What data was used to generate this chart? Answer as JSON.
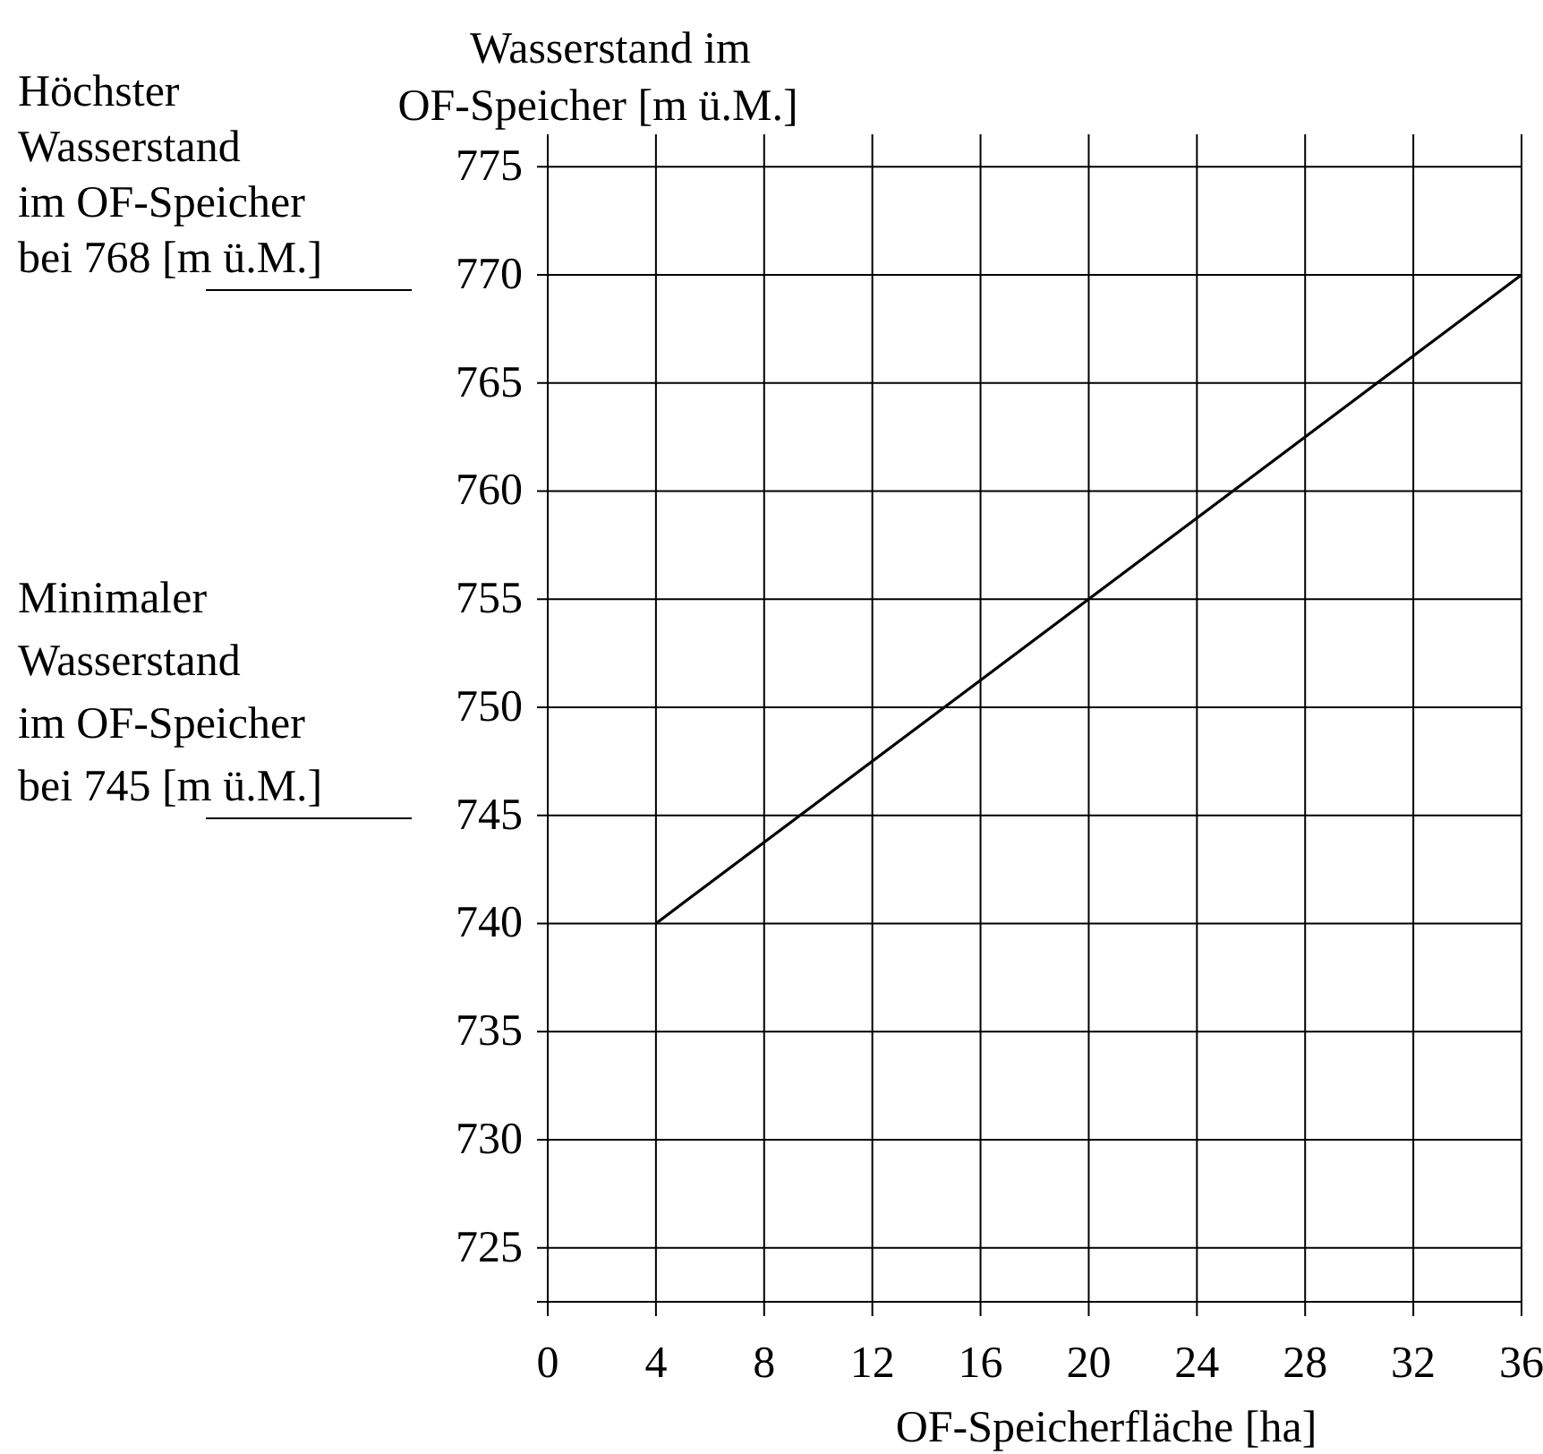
{
  "chart_data": {
    "type": "line",
    "xlabel": "OF-Speicherfläche [ha]",
    "ylabel": "Wasserstand im\nOF-Speicher [m ü.M.]",
    "x": [
      4,
      36
    ],
    "series": [
      {
        "color": "#000000",
        "values": [
          740,
          770
        ]
      }
    ],
    "xlim": [
      0,
      36
    ],
    "xticks": [
      0,
      4,
      8,
      12,
      16,
      20,
      24,
      28,
      32,
      36
    ],
    "ylim": [
      722.5,
      776.5
    ],
    "yticks": [
      725,
      730,
      735,
      740,
      745,
      750,
      755,
      760,
      765,
      770,
      775
    ],
    "grid": true,
    "marker": "none",
    "line_style": "solid",
    "annotations": [
      "Höchster\nWasserstand\nim OF-Speicher\nbei 768 [m ü.M.]",
      "Minimaler\nWasserstand\nim OF-Speicher\nbei 745 [m ü.M.]"
    ]
  }
}
